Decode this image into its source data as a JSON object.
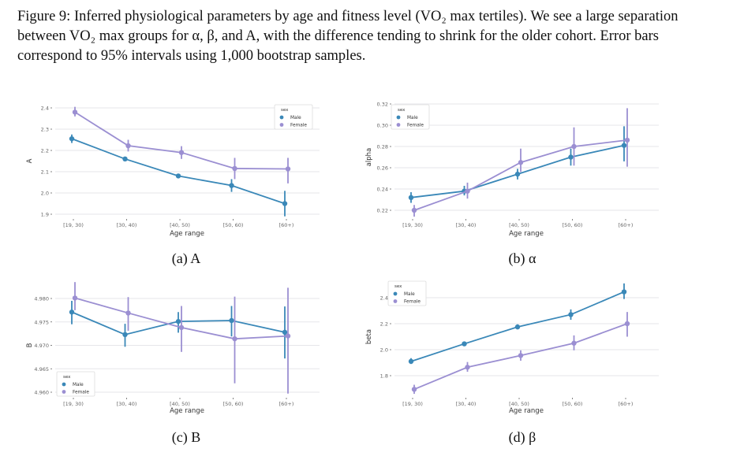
{
  "figure_caption": "Figure 9: Inferred physiological parameters by age and fitness level (VO₂ max tertiles). We see a large separation between VO₂ max groups for α, β, and A, with the difference tending to shrink for the older cohort. Error bars correspond to 95% intervals using 1,000 bootstrap samples.",
  "colors": {
    "male": "#3a88b8",
    "female": "#9b8fd2"
  },
  "chart_data": [
    {
      "type": "line",
      "subcaption": "(a) A",
      "xlabel": "Age range",
      "ylabel": "A",
      "categories": [
        "[19, 30)",
        "[30, 40)",
        "[40, 50)",
        "[50, 60)",
        "[60+)"
      ],
      "yticks": [
        "1.9",
        "2.0",
        "2.1",
        "2.2",
        "2.3",
        "2.4"
      ],
      "ylim": [
        1.9,
        2.4
      ],
      "legend": {
        "title": "sex",
        "placement": "top-right"
      },
      "grid": true,
      "series": [
        {
          "name": "Male",
          "values": [
            2.255,
            2.16,
            2.08,
            2.035,
            1.95
          ],
          "ci_low": [
            2.235,
            2.15,
            2.07,
            2.005,
            1.89
          ],
          "ci_high": [
            2.275,
            2.17,
            2.09,
            2.065,
            2.01
          ]
        },
        {
          "name": "Female",
          "values": [
            2.38,
            2.222,
            2.19,
            2.115,
            2.113
          ],
          "ci_low": [
            2.36,
            2.195,
            2.16,
            2.065,
            2.045
          ],
          "ci_high": [
            2.405,
            2.25,
            2.22,
            2.165,
            2.165
          ]
        }
      ]
    },
    {
      "type": "line",
      "subcaption": "(b) α",
      "xlabel": "Age range",
      "ylabel": "alpha",
      "categories": [
        "[19, 30)",
        "[30, 40)",
        "[40, 50)",
        "[50, 60)",
        "[60+)"
      ],
      "yticks": [
        "0.22",
        "0.24",
        "0.26",
        "0.28",
        "0.30",
        "0.32"
      ],
      "ylim": [
        0.22,
        0.32
      ],
      "legend": {
        "title": "sex",
        "placement": "top-left"
      },
      "grid": true,
      "series": [
        {
          "name": "Male",
          "values": [
            0.232,
            0.238,
            0.254,
            0.27,
            0.281
          ],
          "ci_low": [
            0.227,
            0.234,
            0.249,
            0.262,
            0.266
          ],
          "ci_high": [
            0.237,
            0.243,
            0.259,
            0.278,
            0.299
          ]
        },
        {
          "name": "Female",
          "values": [
            0.22,
            0.238,
            0.265,
            0.28,
            0.286
          ],
          "ci_low": [
            0.214,
            0.231,
            0.256,
            0.262,
            0.261
          ],
          "ci_high": [
            0.225,
            0.246,
            0.278,
            0.298,
            0.316
          ]
        }
      ]
    },
    {
      "type": "line",
      "subcaption": "(c) B",
      "xlabel": "Age range",
      "ylabel": "B",
      "categories": [
        "[19, 30)",
        "[30, 40)",
        "[40, 50)",
        "[50, 60)",
        "[60+)"
      ],
      "yticks": [
        "4.960",
        "4.965",
        "4.970",
        "4.975",
        "4.980"
      ],
      "ylim": [
        4.96,
        4.98
      ],
      "legend": {
        "title": "sex",
        "placement": "bottom-left"
      },
      "grid": true,
      "series": [
        {
          "name": "Male",
          "values": [
            4.9771,
            4.9723,
            4.9751,
            4.9753,
            4.9728
          ],
          "ci_low": [
            4.9745,
            4.9697,
            4.9727,
            4.9719,
            4.9672
          ],
          "ci_high": [
            4.9795,
            4.9746,
            4.9771,
            4.9784,
            4.9783
          ]
        },
        {
          "name": "Female",
          "values": [
            4.9801,
            4.9769,
            4.9738,
            4.9714,
            4.972
          ],
          "ci_low": [
            4.9775,
            4.9731,
            4.9686,
            4.9619,
            4.9597
          ],
          "ci_high": [
            4.9835,
            4.9803,
            4.9784,
            4.9804,
            4.9823
          ]
        }
      ]
    },
    {
      "type": "line",
      "subcaption": "(d) β",
      "xlabel": "Age range",
      "ylabel": "beta",
      "categories": [
        "[19, 30)",
        "[30, 40)",
        "[40, 50)",
        "[50, 60)",
        "[60+)"
      ],
      "yticks": [
        "1.8",
        "2.0",
        "2.2",
        "2.4"
      ],
      "ylim": [
        1.8,
        2.4
      ],
      "legend": {
        "title": "sex",
        "placement": "top-left"
      },
      "grid": true,
      "series": [
        {
          "name": "Male",
          "values": [
            1.91,
            2.045,
            2.175,
            2.27,
            2.445
          ],
          "ci_low": [
            1.89,
            2.035,
            2.16,
            2.23,
            2.39
          ],
          "ci_high": [
            1.935,
            2.06,
            2.195,
            2.31,
            2.51
          ]
        },
        {
          "name": "Female",
          "values": [
            1.695,
            1.865,
            1.955,
            2.05,
            2.2
          ],
          "ci_low": [
            1.66,
            1.83,
            1.915,
            1.995,
            2.1
          ],
          "ci_high": [
            1.73,
            1.905,
            1.995,
            2.11,
            2.29
          ]
        }
      ]
    }
  ]
}
